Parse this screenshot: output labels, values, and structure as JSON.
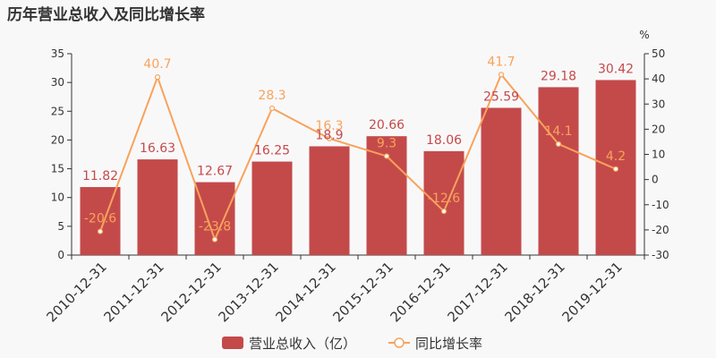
{
  "chart_data": {
    "title": "历年营业总收入及同比增长率",
    "type": "bar+line",
    "categories": [
      "2010-12-31",
      "2011-12-31",
      "2012-12-31",
      "2013-12-31",
      "2014-12-31",
      "2015-12-31",
      "2016-12-31",
      "2017-12-31",
      "2018-12-31",
      "2019-12-31"
    ],
    "series": [
      {
        "name": "营业总收入（亿）",
        "type": "bar",
        "axis": "left",
        "color": "#c44a4a",
        "values": [
          11.82,
          16.63,
          12.67,
          16.25,
          18.9,
          20.66,
          18.06,
          25.59,
          29.18,
          30.42
        ]
      },
      {
        "name": "同比增长率",
        "type": "line",
        "axis": "right",
        "color": "#f7a35c",
        "values": [
          -20.6,
          40.7,
          -23.8,
          28.3,
          16.3,
          9.3,
          -12.6,
          41.7,
          14.1,
          4.2
        ]
      }
    ],
    "y_left": {
      "min": 0,
      "max": 35,
      "ticks": [
        0,
        5,
        10,
        15,
        20,
        25,
        30,
        35
      ]
    },
    "y_right": {
      "label": "%",
      "min": -30,
      "max": 50,
      "ticks": [
        -30,
        -20,
        -10,
        0,
        10,
        20,
        30,
        40,
        50
      ]
    },
    "legend_position": "bottom-center",
    "grid": false
  }
}
